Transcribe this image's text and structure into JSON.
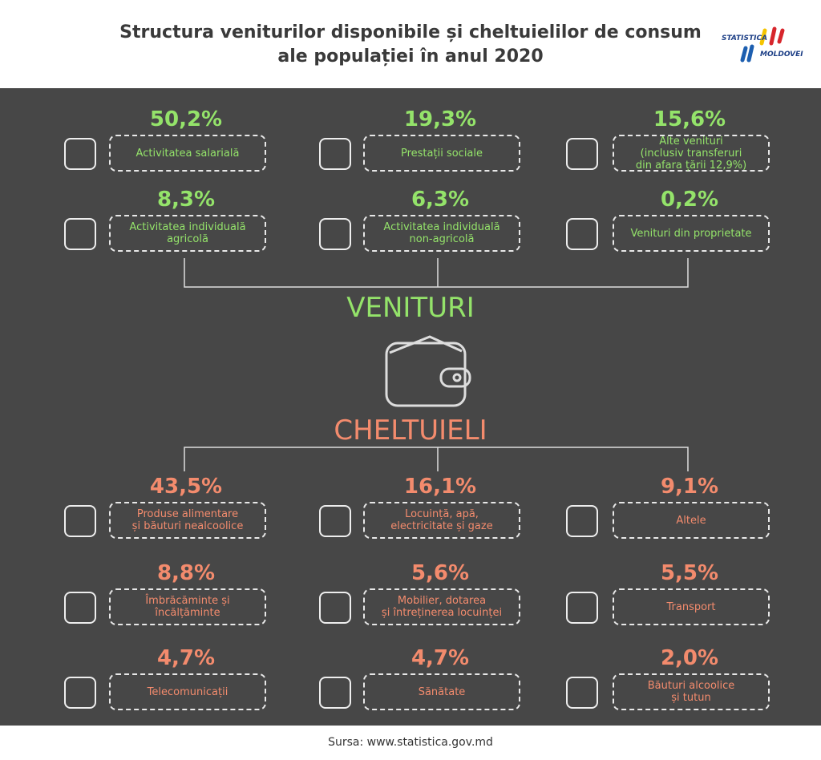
{
  "header": {
    "title": [
      "Structura veniturilor disponibile și cheltuielilor de consum",
      "ale populației în anul 2020"
    ],
    "logo_top": "STATISTICA",
    "logo_bottom": "MOLDOVEI"
  },
  "income": {
    "heading": "VENITURI",
    "items": [
      {
        "value": "50,2%",
        "label": [
          "Activitatea salarială"
        ]
      },
      {
        "value": "19,3%",
        "label": [
          "Prestații sociale"
        ]
      },
      {
        "value": "15,6%",
        "label": [
          "Alte venituri",
          "(inclusiv transferuri",
          "din afara țării 12,9%)"
        ]
      },
      {
        "value": "8,3%",
        "label": [
          "Activitatea individuală",
          "agricolă"
        ]
      },
      {
        "value": "6,3%",
        "label": [
          "Activitatea individuală",
          "non-agricolă"
        ]
      },
      {
        "value": "0,2%",
        "label": [
          "Venituri din proprietate"
        ]
      }
    ]
  },
  "expenses": {
    "heading": "CHELTUIELI",
    "items": [
      {
        "value": "43,5%",
        "label": [
          "Produse alimentare",
          "și băuturi nealcoolice"
        ]
      },
      {
        "value": "16,1%",
        "label": [
          "Locuință, apă,",
          "electricitate și gaze"
        ]
      },
      {
        "value": "9,1%",
        "label": [
          "Altele"
        ]
      },
      {
        "value": "8,8%",
        "label": [
          "Îmbrăcăminte și",
          "încălțăminte"
        ]
      },
      {
        "value": "5,6%",
        "label": [
          "Mobilier, dotarea",
          "și întreținerea locuinței"
        ]
      },
      {
        "value": "5,5%",
        "label": [
          "Transport"
        ]
      },
      {
        "value": "4,7%",
        "label": [
          "Telecomunicații"
        ]
      },
      {
        "value": "4,7%",
        "label": [
          "Sănătate"
        ]
      },
      {
        "value": "2,0%",
        "label": [
          "Băuturi alcoolice",
          "și tutun"
        ]
      }
    ]
  },
  "footer": {
    "source": "Sursa: www.statistica.gov.md"
  }
}
